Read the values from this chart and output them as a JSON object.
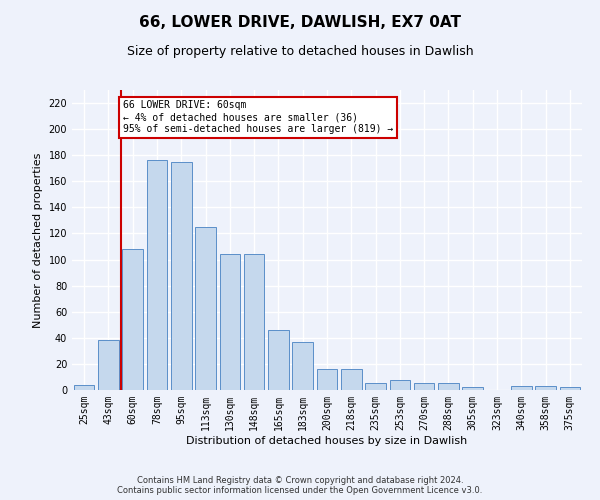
{
  "title": "66, LOWER DRIVE, DAWLISH, EX7 0AT",
  "subtitle": "Size of property relative to detached houses in Dawlish",
  "xlabel": "Distribution of detached houses by size in Dawlish",
  "ylabel": "Number of detached properties",
  "bar_labels": [
    "25sqm",
    "43sqm",
    "60sqm",
    "78sqm",
    "95sqm",
    "113sqm",
    "130sqm",
    "148sqm",
    "165sqm",
    "183sqm",
    "200sqm",
    "218sqm",
    "235sqm",
    "253sqm",
    "270sqm",
    "288sqm",
    "305sqm",
    "323sqm",
    "340sqm",
    "358sqm",
    "375sqm"
  ],
  "bar_values": [
    4,
    38,
    108,
    176,
    175,
    125,
    104,
    104,
    46,
    37,
    16,
    16,
    5,
    8,
    5,
    5,
    2,
    0,
    3,
    3,
    2
  ],
  "bar_color": "#c5d8ed",
  "bar_edge_color": "#5b8fc9",
  "highlight_color": "#cc0000",
  "annotation_text": "66 LOWER DRIVE: 60sqm\n← 4% of detached houses are smaller (36)\n95% of semi-detached houses are larger (819) →",
  "annotation_box_color": "#ffffff",
  "annotation_box_edge_color": "#cc0000",
  "ylim": [
    0,
    230
  ],
  "yticks": [
    0,
    20,
    40,
    60,
    80,
    100,
    120,
    140,
    160,
    180,
    200,
    220
  ],
  "footer_line1": "Contains HM Land Registry data © Crown copyright and database right 2024.",
  "footer_line2": "Contains public sector information licensed under the Open Government Licence v3.0.",
  "background_color": "#eef2fb",
  "grid_color": "#ffffff",
  "title_fontsize": 11,
  "subtitle_fontsize": 9,
  "tick_fontsize": 7,
  "ylabel_fontsize": 8,
  "xlabel_fontsize": 8,
  "footer_fontsize": 6,
  "highlight_bar_index": 2
}
